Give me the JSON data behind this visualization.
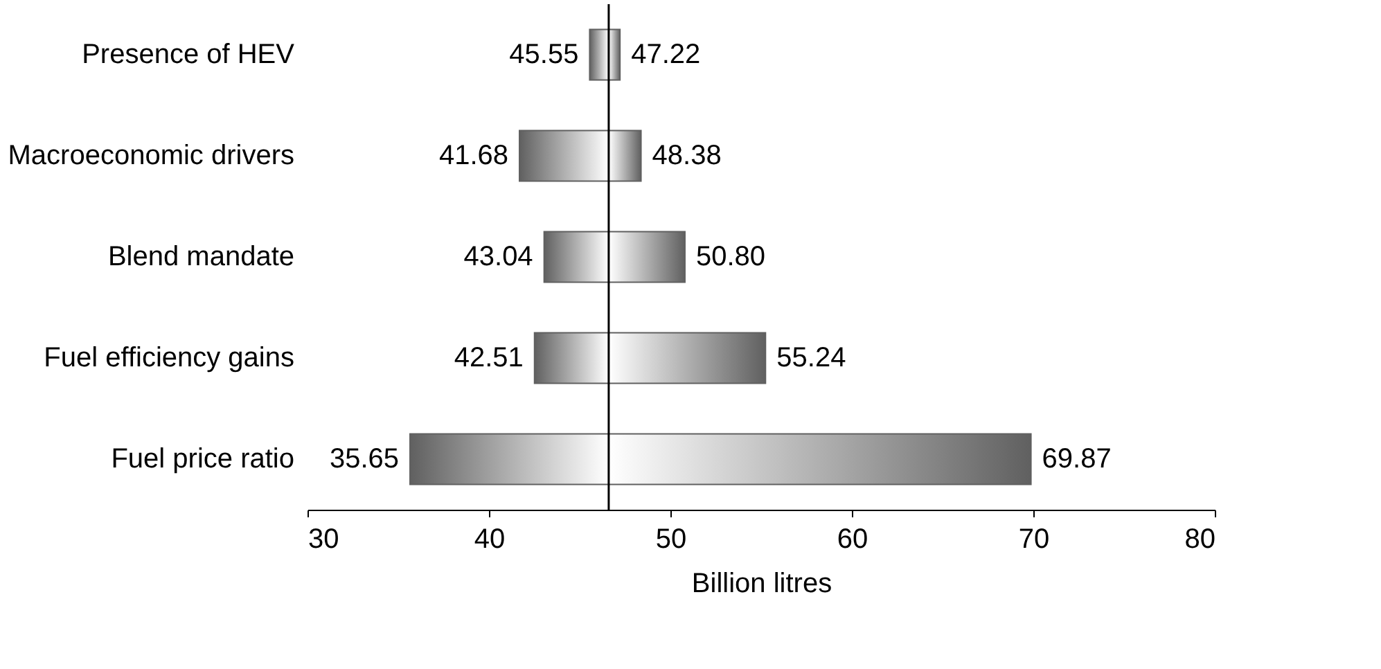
{
  "chart_data": {
    "type": "bar",
    "orientation": "horizontal",
    "xlabel": "Billion litres",
    "categories": [
      "Presence of HEV",
      "Macroeconomic drivers",
      "Blend mandate",
      "Fuel efficiency gains",
      "Fuel price ratio"
    ],
    "series": [
      {
        "color": "#606060",
        "base": [
          45.55,
          41.68,
          43.04,
          42.51,
          35.65
        ],
        "values": [
          1.05,
          4.92,
          3.56,
          4.09,
          10.95
        ]
      },
      {
        "color": "#606060",
        "base": [
          46.6,
          46.6,
          46.6,
          46.6,
          46.6
        ],
        "values": [
          0.62,
          1.78,
          4.2,
          8.64,
          23.27
        ]
      }
    ],
    "annotations": [
      {
        "text": "45.55",
        "x": 45.55,
        "y": "Presence of HEV"
      },
      {
        "text": "41.68",
        "x": 41.68,
        "y": "Macroeconomic drivers"
      },
      {
        "text": "43.04",
        "x": 43.04,
        "y": "Blend mandate"
      },
      {
        "text": "42.51",
        "x": 42.51,
        "y": "Fuel efficiency gains"
      },
      {
        "text": "35.65",
        "x": 35.65,
        "y": "Fuel price ratio"
      },
      {
        "text": "47.22",
        "x": 47.22,
        "y": "Presence of HEV"
      },
      {
        "text": "48.38",
        "x": 48.38,
        "y": "Macroeconomic drivers"
      },
      {
        "text": "50.80",
        "x": 50.8,
        "y": "Blend mandate"
      },
      {
        "text": "55.24",
        "x": 55.24,
        "y": "Fuel efficiency gains"
      },
      {
        "text": "69.87",
        "x": 69.87,
        "y": "Fuel price ratio"
      }
    ],
    "xlim": [
      30,
      80
    ],
    "xticks": [
      30,
      40,
      50,
      60,
      70,
      80
    ],
    "ref_lines": [
      {
        "axis": "x",
        "value": 46.6,
        "label": null,
        "color": "#000000"
      }
    ],
    "grid": false
  }
}
